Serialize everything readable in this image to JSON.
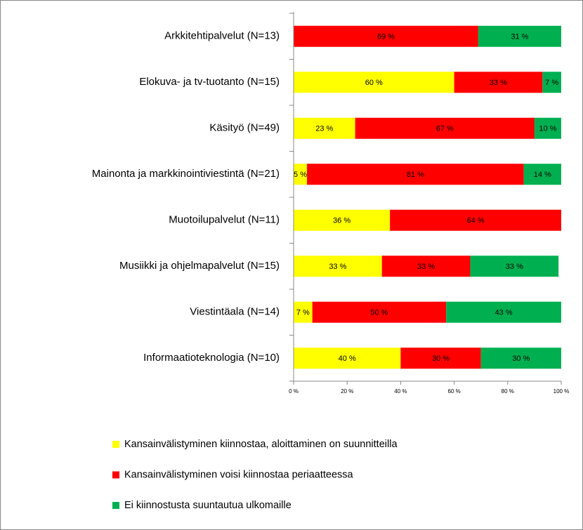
{
  "chart_data": {
    "type": "stacked-bar-horizontal",
    "categories": [
      "Arkkitehtipalvelut (N=13)",
      "Elokuva- ja tv-tuotanto (N=15)",
      "Käsityö (N=49)",
      "Mainonta ja markkinointiviestintä (N=21)",
      "Muotoilupalvelut (N=11)",
      "Musiikki ja ohjelmapalvelut (N=15)",
      "Viestintäala (N=14)",
      "Informaatioteknologia (N=10)"
    ],
    "series": [
      {
        "name": "Kansainvälistyminen kiinnostaa, aloittaminen on suunnitteilla",
        "color": "#ffff00",
        "values": [
          null,
          60,
          23,
          5,
          36,
          33,
          7,
          40
        ],
        "value_labels": [
          null,
          "60 %",
          "23 %",
          "5 %",
          "36 %",
          "33 %",
          "7 %",
          "40 %"
        ]
      },
      {
        "name": "Kansainvälistyminen voisi kiinnostaa periaatteessa",
        "color": "#ff0000",
        "values": [
          69,
          33,
          67,
          81,
          64,
          33,
          50,
          30
        ],
        "value_labels": [
          "69 %",
          "33 %",
          "67 %",
          "81 %",
          "64 %",
          "33 %",
          "50 %",
          "30 %"
        ]
      },
      {
        "name": "Ei kiinnostusta suuntautua ulkomaille",
        "color": "#00b050",
        "values": [
          31,
          7,
          10,
          14,
          null,
          33,
          43,
          30
        ],
        "value_labels": [
          "31 %",
          "7 %",
          "10 %",
          "14 %",
          null,
          "33 %",
          "43 %",
          "30 %"
        ]
      }
    ],
    "xlim": [
      0,
      100
    ],
    "xticks": [
      {
        "value": 0,
        "label": "0 %"
      },
      {
        "value": 20,
        "label": "20 %"
      },
      {
        "value": 40,
        "label": "40 %"
      },
      {
        "value": 60,
        "label": "60 %"
      },
      {
        "value": 80,
        "label": "80 %"
      },
      {
        "value": 100,
        "label": "100 %"
      }
    ],
    "legend": "bottom"
  }
}
